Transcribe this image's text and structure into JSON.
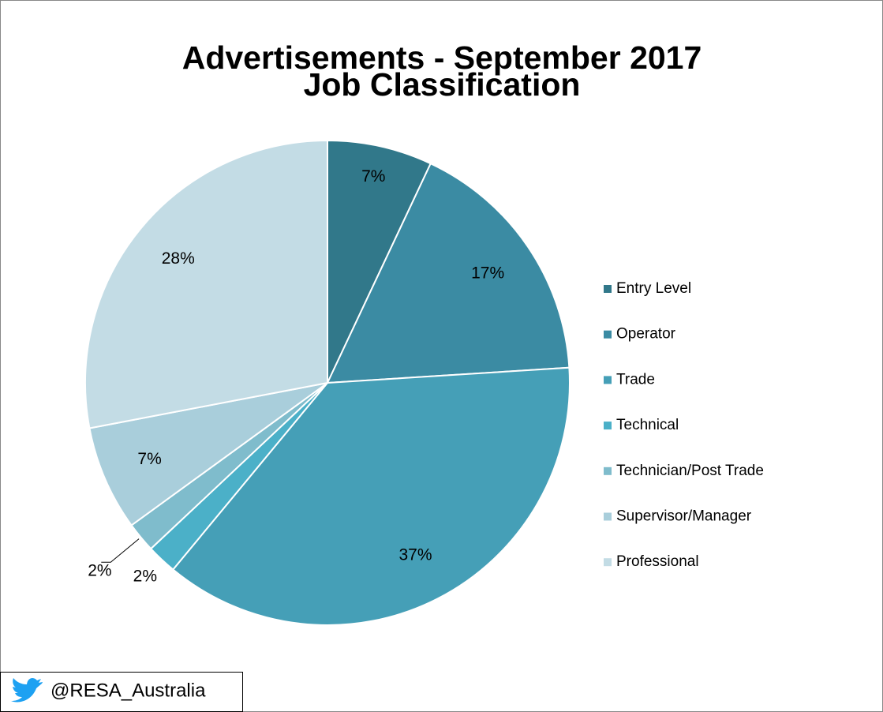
{
  "chart_data": {
    "type": "pie",
    "title": [
      "Advertisements -  September 2017",
      "Job Classification"
    ],
    "categories": [
      "Entry Level",
      "Operator",
      "Trade",
      "Technical",
      "Technician/Post Trade",
      "Supervisor/Manager",
      "Professional"
    ],
    "values": [
      7,
      17,
      37,
      2,
      2,
      7,
      28
    ],
    "value_labels": [
      "7%",
      "17%",
      "37%",
      "2%",
      "2%",
      "7%",
      "28%"
    ],
    "colors": [
      "#31788a",
      "#3b8ba3",
      "#459fb7",
      "#4bb0c8",
      "#7fbccc",
      "#a9cedb",
      "#c3dce5"
    ],
    "legend": "right"
  },
  "footer": "@RESA_Australia"
}
